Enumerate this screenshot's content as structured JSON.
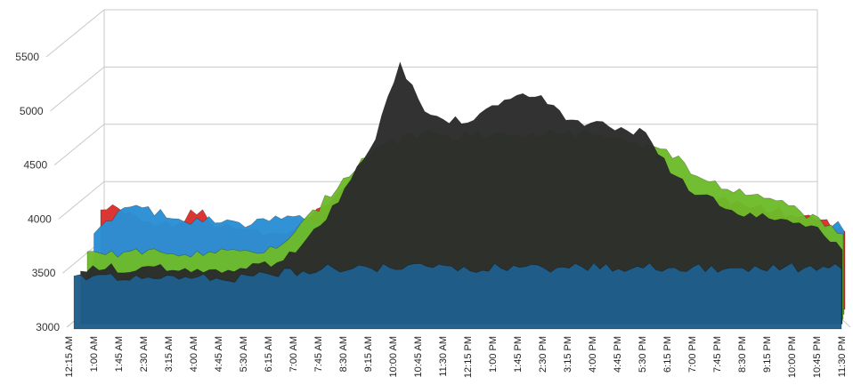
{
  "chart_data": {
    "type": "area",
    "style": "3d-surface",
    "title": "",
    "xlabel": "",
    "ylabel": "",
    "ylim": [
      3000,
      5500
    ],
    "yticks": [
      "3000",
      "3500",
      "4000",
      "4500",
      "5000",
      "5500"
    ],
    "grid": true,
    "legend": "none",
    "categories": [
      "12:15 AM",
      "1:00 AM",
      "1:45 AM",
      "2:30 AM",
      "3:15 AM",
      "4:00 AM",
      "4:45 AM",
      "5:30 AM",
      "6:15 AM",
      "7:00 AM",
      "7:45 AM",
      "8:30 AM",
      "9:15 AM",
      "10:00 AM",
      "10:45 AM",
      "11:30 AM",
      "12:15 PM",
      "1:00 PM",
      "1:45 PM",
      "2:30 PM",
      "3:15 PM",
      "4:00 PM",
      "4:45 PM",
      "5:30 PM",
      "6:15 PM",
      "7:00 PM",
      "7:45 PM",
      "8:30 PM",
      "9:15 PM",
      "10:00 PM",
      "10:45 PM",
      "11:30 PM"
    ],
    "series": [
      {
        "color": "#d9302c",
        "values": [
          3950,
          3900,
          3800,
          3780,
          3900,
          3750,
          3720,
          3700,
          3720,
          3900,
          4100,
          4250,
          4300,
          4350,
          4300,
          4250,
          4200,
          4150,
          4150,
          4150,
          4150,
          4150,
          4100,
          4050,
          4000,
          4000,
          4000,
          3950,
          3900,
          3850,
          3800,
          3700
        ]
      },
      {
        "color": "#2a8fd4",
        "values": [
          3700,
          3950,
          3950,
          3900,
          3850,
          3850,
          3800,
          3850,
          3900,
          3850,
          3800,
          3800,
          3800,
          3800,
          3800,
          3800,
          3800,
          3800,
          3800,
          3800,
          3800,
          3800,
          3800,
          3800,
          3800,
          3800,
          3800,
          3800,
          3800,
          3800,
          3800,
          3800
        ]
      },
      {
        "color": "#6dbb2a",
        "values": [
          3600,
          3600,
          3600,
          3600,
          3600,
          3600,
          3600,
          3600,
          3650,
          3900,
          4150,
          4400,
          4600,
          4650,
          4700,
          4650,
          4700,
          4700,
          4700,
          4700,
          4700,
          4700,
          4650,
          4600,
          4500,
          4300,
          4200,
          4150,
          4100,
          4000,
          3900,
          3800
        ]
      },
      {
        "color": "#2b2b2b",
        "values": [
          3500,
          3500,
          3500,
          3500,
          3500,
          3500,
          3500,
          3500,
          3550,
          3700,
          3950,
          4300,
          4700,
          5400,
          4950,
          4850,
          4900,
          5050,
          5100,
          5050,
          4850,
          4850,
          4800,
          4750,
          4400,
          4200,
          4100,
          4000,
          3950,
          3900,
          3850,
          3700
        ]
      },
      {
        "color": "#1f5f8b",
        "values": [
          3450,
          3450,
          3450,
          3450,
          3450,
          3450,
          3450,
          3450,
          3500,
          3500,
          3550,
          3550,
          3550,
          3550,
          3550,
          3550,
          3550,
          3550,
          3550,
          3550,
          3550,
          3550,
          3550,
          3550,
          3550,
          3550,
          3550,
          3550,
          3550,
          3550,
          3550,
          3550
        ]
      }
    ]
  }
}
